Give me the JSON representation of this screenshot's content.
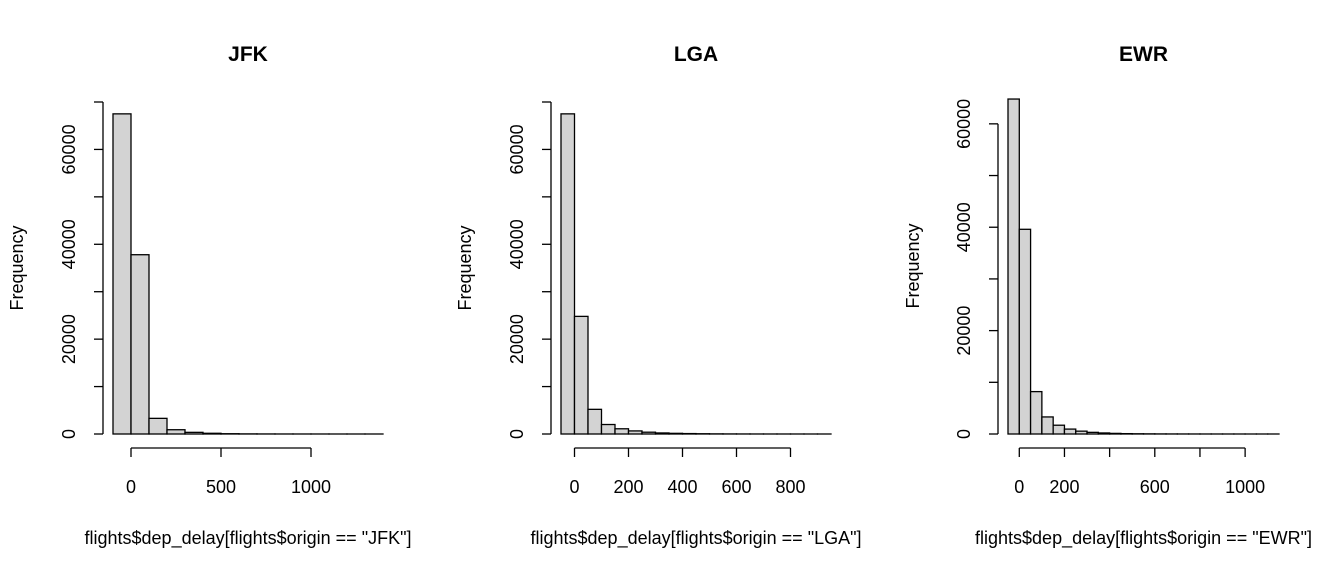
{
  "chart_data": [
    {
      "type": "bar",
      "title": "JFK",
      "xlabel": "flights$dep_delay[flights$origin == \"JFK\"]",
      "ylabel": "Frequency",
      "xlim": [
        -100,
        1400
      ],
      "ylim": [
        0,
        70000
      ],
      "x_ticks": [
        0,
        500,
        1000
      ],
      "x_tick_marks": [
        0,
        500,
        1000
      ],
      "y_ticks": [
        0,
        20000,
        40000,
        60000
      ],
      "y_tick_marks": [
        0,
        10000,
        20000,
        30000,
        40000,
        50000,
        60000,
        70000
      ],
      "bins": [
        {
          "start": -100,
          "end": 0,
          "count": 67500
        },
        {
          "start": 0,
          "end": 100,
          "count": 37800
        },
        {
          "start": 100,
          "end": 200,
          "count": 3300
        },
        {
          "start": 200,
          "end": 300,
          "count": 900
        },
        {
          "start": 300,
          "end": 400,
          "count": 350
        },
        {
          "start": 400,
          "end": 500,
          "count": 150
        },
        {
          "start": 500,
          "end": 600,
          "count": 60
        },
        {
          "start": 600,
          "end": 700,
          "count": 25
        },
        {
          "start": 700,
          "end": 800,
          "count": 12
        },
        {
          "start": 800,
          "end": 900,
          "count": 6
        },
        {
          "start": 900,
          "end": 1000,
          "count": 4
        },
        {
          "start": 1000,
          "end": 1100,
          "count": 3
        },
        {
          "start": 1100,
          "end": 1200,
          "count": 1
        },
        {
          "start": 1200,
          "end": 1300,
          "count": 1
        },
        {
          "start": 1300,
          "end": 1400,
          "count": 1
        }
      ]
    },
    {
      "type": "bar",
      "title": "LGA",
      "xlabel": "flights$dep_delay[flights$origin == \"LGA\"]",
      "ylabel": "Frequency",
      "xlim": [
        -50,
        950
      ],
      "ylim": [
        0,
        70000
      ],
      "x_ticks": [
        0,
        200,
        400,
        600,
        800
      ],
      "x_tick_marks": [
        0,
        200,
        400,
        600,
        800
      ],
      "y_ticks": [
        0,
        20000,
        40000,
        60000
      ],
      "y_tick_marks": [
        0,
        10000,
        20000,
        30000,
        40000,
        50000,
        60000,
        70000
      ],
      "bins": [
        {
          "start": -50,
          "end": 0,
          "count": 67500
        },
        {
          "start": 0,
          "end": 50,
          "count": 24800
        },
        {
          "start": 50,
          "end": 100,
          "count": 5200
        },
        {
          "start": 100,
          "end": 150,
          "count": 2000
        },
        {
          "start": 150,
          "end": 200,
          "count": 1100
        },
        {
          "start": 200,
          "end": 250,
          "count": 650
        },
        {
          "start": 250,
          "end": 300,
          "count": 380
        },
        {
          "start": 300,
          "end": 350,
          "count": 220
        },
        {
          "start": 350,
          "end": 400,
          "count": 140
        },
        {
          "start": 400,
          "end": 450,
          "count": 90
        },
        {
          "start": 450,
          "end": 500,
          "count": 55
        },
        {
          "start": 500,
          "end": 550,
          "count": 30
        },
        {
          "start": 550,
          "end": 600,
          "count": 18
        },
        {
          "start": 600,
          "end": 650,
          "count": 10
        },
        {
          "start": 650,
          "end": 700,
          "count": 6
        },
        {
          "start": 700,
          "end": 750,
          "count": 4
        },
        {
          "start": 750,
          "end": 800,
          "count": 3
        },
        {
          "start": 800,
          "end": 850,
          "count": 2
        },
        {
          "start": 850,
          "end": 900,
          "count": 1
        },
        {
          "start": 900,
          "end": 950,
          "count": 1
        }
      ]
    },
    {
      "type": "bar",
      "title": "EWR",
      "xlabel": "flights$dep_delay[flights$origin == \"EWR\"]",
      "ylabel": "Frequency",
      "xlim": [
        -50,
        1150
      ],
      "ylim": [
        0,
        65000
      ],
      "x_ticks": [
        0,
        200,
        600,
        1000
      ],
      "x_tick_marks": [
        0,
        200,
        400,
        600,
        800,
        1000
      ],
      "y_ticks": [
        0,
        20000,
        40000,
        60000
      ],
      "y_tick_marks": [
        0,
        10000,
        20000,
        30000,
        40000,
        50000,
        60000
      ],
      "bins": [
        {
          "start": -50,
          "end": 0,
          "count": 64800
        },
        {
          "start": 0,
          "end": 50,
          "count": 39600
        },
        {
          "start": 50,
          "end": 100,
          "count": 8200
        },
        {
          "start": 100,
          "end": 150,
          "count": 3300
        },
        {
          "start": 150,
          "end": 200,
          "count": 1700
        },
        {
          "start": 200,
          "end": 250,
          "count": 950
        },
        {
          "start": 250,
          "end": 300,
          "count": 550
        },
        {
          "start": 300,
          "end": 350,
          "count": 320
        },
        {
          "start": 350,
          "end": 400,
          "count": 200
        },
        {
          "start": 400,
          "end": 450,
          "count": 120
        },
        {
          "start": 450,
          "end": 500,
          "count": 70
        },
        {
          "start": 500,
          "end": 550,
          "count": 45
        },
        {
          "start": 550,
          "end": 600,
          "count": 30
        },
        {
          "start": 600,
          "end": 650,
          "count": 18
        },
        {
          "start": 650,
          "end": 700,
          "count": 12
        },
        {
          "start": 700,
          "end": 750,
          "count": 8
        },
        {
          "start": 750,
          "end": 800,
          "count": 6
        },
        {
          "start": 800,
          "end": 850,
          "count": 4
        },
        {
          "start": 850,
          "end": 900,
          "count": 3
        },
        {
          "start": 900,
          "end": 950,
          "count": 2
        },
        {
          "start": 950,
          "end": 1000,
          "count": 2
        },
        {
          "start": 1000,
          "end": 1050,
          "count": 1
        },
        {
          "start": 1050,
          "end": 1100,
          "count": 1
        },
        {
          "start": 1100,
          "end": 1150,
          "count": 1
        }
      ]
    }
  ]
}
